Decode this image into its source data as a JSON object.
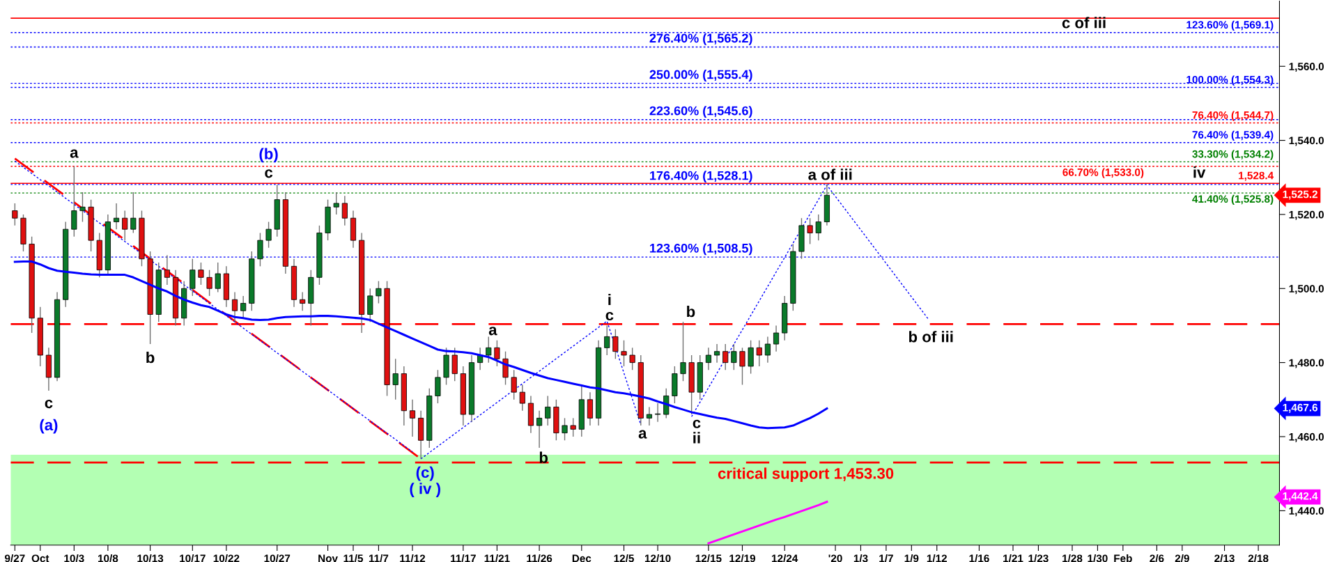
{
  "chart_data": {
    "type": "candlestick",
    "categories": [
      "9/27",
      null,
      null,
      "Oct",
      null,
      null,
      null,
      "10/3",
      null,
      null,
      null,
      "10/8",
      null,
      null,
      null,
      null,
      "10/13",
      null,
      null,
      null,
      null,
      "10/17",
      null,
      null,
      null,
      "10/22",
      null,
      null,
      null,
      null,
      null,
      "10/27",
      null,
      null,
      null,
      null,
      null,
      "Nov",
      null,
      null,
      "11/5",
      null,
      null,
      "11/7",
      null,
      null,
      null,
      "11/12",
      null,
      null,
      null,
      null,
      null,
      "11/17",
      null,
      null,
      null,
      "11/21",
      null,
      null,
      null,
      null,
      "11/26",
      null,
      null,
      null,
      null,
      "Dec",
      null,
      null,
      null,
      null,
      "12/5",
      null,
      null,
      null,
      "12/10",
      null,
      null,
      null,
      null,
      null,
      "12/15",
      null,
      null,
      null,
      "12/19",
      null,
      null,
      null,
      null,
      "12/24",
      null,
      null,
      null,
      null,
      null,
      "'20",
      null,
      null,
      "1/3",
      null,
      null,
      "1/7",
      null,
      null,
      "1/9",
      null,
      null,
      "1/12",
      null,
      null,
      null,
      null,
      "1/16",
      null,
      null,
      null,
      "1/21",
      null,
      null,
      "1/23",
      null,
      null,
      null,
      "1/28",
      null,
      null,
      "1/30",
      null,
      null,
      "Feb",
      null,
      null,
      null,
      "2/6",
      null,
      null,
      "2/9",
      null,
      null,
      null,
      null,
      "2/13",
      null,
      null,
      null,
      "2/18",
      null,
      null
    ],
    "ohlc": [
      [
        1521,
        1523,
        1517,
        1519
      ],
      [
        1519,
        1520,
        1510,
        1512
      ],
      [
        1512,
        1514,
        1488,
        1492
      ],
      [
        1492,
        1495,
        1479,
        1482
      ],
      [
        1482,
        1484,
        1472.4,
        1476
      ],
      [
        1476,
        1499,
        1475,
        1497
      ],
      [
        1497,
        1518,
        1495,
        1516
      ],
      [
        1516,
        1533,
        1514,
        1521
      ],
      [
        1521,
        1526,
        1518,
        1522
      ],
      [
        1522,
        1524,
        1510,
        1513
      ],
      [
        1513,
        1515,
        1503,
        1505
      ],
      [
        1505,
        1520,
        1504,
        1518
      ],
      [
        1518,
        1523,
        1516,
        1519
      ],
      [
        1519,
        1521,
        1513,
        1516
      ],
      [
        1516,
        1526,
        1515,
        1519
      ],
      [
        1519,
        1521,
        1506,
        1508
      ],
      [
        1508,
        1510,
        1485,
        1493
      ],
      [
        1493,
        1507,
        1491,
        1505
      ],
      [
        1505,
        1509,
        1501,
        1503
      ],
      [
        1503,
        1505,
        1490,
        1492
      ],
      [
        1492,
        1502,
        1490,
        1500
      ],
      [
        1500,
        1508,
        1498,
        1505
      ],
      [
        1505,
        1507,
        1501,
        1503
      ],
      [
        1503,
        1505,
        1498,
        1500
      ],
      [
        1500,
        1507,
        1499,
        1504
      ],
      [
        1504,
        1506,
        1495,
        1497
      ],
      [
        1497,
        1499,
        1491,
        1494
      ],
      [
        1494,
        1498,
        1492,
        1496
      ],
      [
        1496,
        1510,
        1494,
        1508
      ],
      [
        1508,
        1515,
        1506,
        1513
      ],
      [
        1513,
        1518,
        1511,
        1516
      ],
      [
        1516,
        1528,
        1514,
        1524
      ],
      [
        1524,
        1526,
        1504,
        1506
      ],
      [
        1506,
        1508,
        1495,
        1497
      ],
      [
        1497,
        1499,
        1494,
        1496
      ],
      [
        1496,
        1505,
        1490,
        1503
      ],
      [
        1503,
        1517,
        1501,
        1515
      ],
      [
        1515,
        1524,
        1513,
        1522
      ],
      [
        1522,
        1526,
        1520,
        1523
      ],
      [
        1523,
        1525,
        1517,
        1519
      ],
      [
        1519,
        1521,
        1511,
        1513
      ],
      [
        1513,
        1515,
        1488,
        1493
      ],
      [
        1493,
        1500,
        1491,
        1498
      ],
      [
        1498,
        1502,
        1496,
        1500
      ],
      [
        1500,
        1502,
        1471,
        1474
      ],
      [
        1474,
        1481,
        1470,
        1477
      ],
      [
        1477,
        1479,
        1463,
        1467
      ],
      [
        1467,
        1470,
        1460,
        1465
      ],
      [
        1465,
        1467,
        1454,
        1459
      ],
      [
        1459,
        1473,
        1457,
        1471
      ],
      [
        1471,
        1478,
        1469,
        1476
      ],
      [
        1476,
        1484,
        1474,
        1482
      ],
      [
        1482,
        1484,
        1475,
        1477
      ],
      [
        1477,
        1479,
        1463,
        1466
      ],
      [
        1466,
        1482,
        1464,
        1480
      ],
      [
        1480,
        1484,
        1478,
        1482
      ],
      [
        1482,
        1487,
        1480,
        1484
      ],
      [
        1484,
        1486,
        1479,
        1481
      ],
      [
        1481,
        1483,
        1474,
        1476
      ],
      [
        1476,
        1478,
        1470,
        1472
      ],
      [
        1472,
        1474,
        1467,
        1469
      ],
      [
        1469,
        1471,
        1461,
        1463
      ],
      [
        1463,
        1467,
        1457,
        1465
      ],
      [
        1465,
        1471,
        1463,
        1468
      ],
      [
        1468,
        1470,
        1459,
        1461
      ],
      [
        1461,
        1465,
        1459,
        1463
      ],
      [
        1463,
        1465,
        1460,
        1462
      ],
      [
        1462,
        1474,
        1460,
        1470
      ],
      [
        1470,
        1472,
        1463,
        1465
      ],
      [
        1465,
        1486,
        1463,
        1484
      ],
      [
        1484,
        1490,
        1482,
        1487
      ],
      [
        1487,
        1489,
        1481,
        1483
      ],
      [
        1483,
        1486,
        1479,
        1482
      ],
      [
        1482,
        1484,
        1478,
        1480
      ],
      [
        1480,
        1482,
        1463,
        1465
      ],
      [
        1465,
        1468,
        1463,
        1466
      ],
      [
        1466,
        1469,
        1464,
        1466
      ],
      [
        1466,
        1473,
        1465,
        1471
      ],
      [
        1471,
        1479,
        1469,
        1477
      ],
      [
        1477,
        1491,
        1475,
        1480
      ],
      [
        1480,
        1482,
        1466,
        1472
      ],
      [
        1472,
        1482,
        1470,
        1480
      ],
      [
        1480,
        1484,
        1478,
        1482
      ],
      [
        1482,
        1485,
        1480,
        1483
      ],
      [
        1483,
        1485,
        1478,
        1480
      ],
      [
        1480,
        1485,
        1478,
        1483
      ],
      [
        1483,
        1484,
        1474,
        1479
      ],
      [
        1479,
        1486,
        1477,
        1484
      ],
      [
        1484,
        1486,
        1479,
        1482
      ],
      [
        1482,
        1487,
        1480,
        1485
      ],
      [
        1485,
        1490,
        1483,
        1488
      ],
      [
        1488,
        1498,
        1486,
        1496
      ],
      [
        1496,
        1512,
        1494,
        1510
      ],
      [
        1510,
        1519,
        1508,
        1517
      ],
      [
        1517,
        1519,
        1512,
        1515
      ],
      [
        1515,
        1520,
        1513,
        1518
      ],
      [
        1518,
        1528.2,
        1517,
        1525.2
      ],
      null,
      null,
      null,
      null,
      null,
      null,
      null,
      null,
      null,
      null,
      null,
      null,
      null,
      null,
      null,
      null,
      null,
      null,
      null,
      null,
      null,
      null,
      null,
      null,
      null,
      null,
      null,
      null,
      null,
      null,
      null,
      null,
      null,
      null,
      null,
      null,
      null,
      null,
      null,
      null,
      null,
      null,
      null,
      null,
      null,
      null,
      null,
      null,
      null,
      null,
      null,
      null,
      null
    ],
    "ylim": [
      1430.7,
      1577.6
    ],
    "yticks": [
      {
        "value": 1440,
        "label": "1,440.0"
      },
      {
        "value": 1460,
        "label": "1,460.0"
      },
      {
        "value": 1480,
        "label": "1,480.0"
      },
      {
        "value": 1500,
        "label": "1,500.0"
      },
      {
        "value": 1520,
        "label": "1,520.0"
      },
      {
        "value": 1540,
        "label": "1,540.0"
      },
      {
        "value": 1560,
        "label": "1,560.0"
      }
    ],
    "series": [
      {
        "type": "line",
        "color": "#0000ff",
        "values": [
          1507.2,
          1507.3,
          1507.3,
          1506.5,
          1505.5,
          1504.8,
          1504.5,
          1504.3,
          1504,
          1503.8,
          1503.7,
          1503.7,
          1503.7,
          1503.7,
          1503,
          1502,
          1501,
          1500,
          1499.2,
          1498,
          1497,
          1496.2,
          1495.5,
          1495,
          1494,
          1493,
          1492.3,
          1492,
          1491.6,
          1491.5,
          1491.6,
          1492,
          1492.3,
          1492.4,
          1492.5,
          1492.5,
          1492.6,
          1492.6,
          1492.5,
          1492.3,
          1492.1,
          1491.9,
          1491.5,
          1490.5,
          1489.5,
          1488.5,
          1487.5,
          1486.5,
          1485.5,
          1484.5,
          1483.5,
          1483.1,
          1483,
          1482.8,
          1482.5,
          1482,
          1481.5,
          1480.5,
          1479.5,
          1478.8,
          1478,
          1477.2,
          1476.5,
          1475.8,
          1475.3,
          1474.8,
          1474.3,
          1473.8,
          1473.3,
          1473,
          1472.5,
          1472,
          1471.7,
          1471.3,
          1470.8,
          1470.3,
          1469.5,
          1468.8,
          1468,
          1467.3,
          1466.6,
          1466.1,
          1465.6,
          1465.1,
          1464.8,
          1464.2,
          1463.6,
          1463,
          1462.5,
          1462.3,
          1462.4,
          1462.5,
          1463,
          1464,
          1465,
          1466.2,
          1467.6,
          null,
          null,
          null,
          null,
          null,
          null,
          null,
          null,
          null,
          null,
          null,
          null,
          null,
          null,
          null,
          null,
          null,
          null,
          null,
          null,
          null,
          null,
          null,
          null,
          null,
          null,
          null,
          null,
          null,
          null,
          null,
          null,
          null,
          null,
          null,
          null,
          null,
          null,
          null,
          null,
          null,
          null,
          null,
          null,
          null,
          null,
          null,
          null,
          null,
          null,
          null,
          null,
          null
        ]
      },
      {
        "type": "line",
        "color": "#ff00ff",
        "values": [
          null,
          null,
          null,
          null,
          null,
          null,
          null,
          null,
          null,
          null,
          null,
          null,
          null,
          null,
          null,
          null,
          null,
          null,
          null,
          null,
          null,
          null,
          null,
          null,
          null,
          null,
          null,
          null,
          null,
          null,
          null,
          null,
          null,
          null,
          null,
          null,
          null,
          null,
          null,
          null,
          null,
          null,
          null,
          null,
          null,
          null,
          null,
          null,
          null,
          null,
          null,
          null,
          null,
          null,
          null,
          null,
          null,
          null,
          null,
          null,
          null,
          null,
          null,
          null,
          null,
          null,
          null,
          null,
          null,
          null,
          null,
          null,
          null,
          null,
          null,
          null,
          null,
          null,
          null,
          null,
          null,
          null,
          1431.2,
          1432,
          1432.8,
          1433.6,
          1434.4,
          1435.2,
          1436,
          1436.8,
          1437.6,
          1438.3,
          1439.1,
          1439.9,
          1440.7,
          1441.5,
          1442.4,
          null,
          null,
          null,
          null,
          null,
          null,
          null,
          null,
          null,
          null,
          null,
          null,
          null,
          null,
          null,
          null,
          null,
          null,
          null,
          null,
          null,
          null,
          null,
          null,
          null,
          null,
          null,
          null,
          null,
          null,
          null,
          null,
          null,
          null,
          null,
          null,
          null,
          null,
          null,
          null,
          null,
          null,
          null,
          null,
          null,
          null,
          null,
          null,
          null,
          null,
          null,
          null,
          null
        ]
      },
      {
        "type": "line",
        "color": "#ff0000",
        "line_style": "dashed",
        "values": [
          1535.1,
          null,
          null,
          null,
          null,
          null,
          null,
          null,
          null,
          null,
          null,
          null,
          null,
          null,
          null,
          null,
          null,
          null,
          null,
          null,
          null,
          null,
          null,
          null,
          null,
          null,
          null,
          null,
          null,
          null,
          null,
          null,
          null,
          null,
          null,
          null,
          null,
          null,
          null,
          null,
          null,
          null,
          null,
          null,
          null,
          null,
          null,
          null,
          1454,
          null,
          null,
          null,
          null,
          null,
          null,
          null,
          null,
          null,
          null,
          null,
          null,
          null,
          null,
          null,
          null,
          null,
          null,
          null,
          null,
          null,
          null,
          null,
          null,
          null,
          null,
          null,
          null,
          null,
          null,
          null,
          null,
          null,
          null,
          null,
          null,
          null,
          null,
          null,
          null,
          null,
          null,
          null,
          null,
          null,
          null,
          null,
          null,
          null,
          null,
          null,
          null,
          null,
          null,
          null,
          null,
          null,
          null,
          null,
          null,
          null,
          null,
          null,
          null,
          null,
          null,
          null,
          null,
          null,
          null,
          null,
          null,
          null,
          null,
          null,
          null,
          null,
          null,
          null,
          null,
          null,
          null,
          null,
          null,
          null,
          null,
          null,
          null,
          null,
          null,
          null,
          null,
          null,
          null,
          null,
          null,
          null,
          null,
          null,
          null,
          null
        ]
      },
      {
        "type": "line",
        "color": "#0000ff",
        "line_style": "dotted",
        "values": [
          1534.4,
          null,
          null,
          null,
          null,
          null,
          null,
          null,
          null,
          null,
          null,
          null,
          null,
          null,
          null,
          null,
          null,
          null,
          null,
          null,
          null,
          null,
          null,
          null,
          null,
          null,
          null,
          null,
          null,
          null,
          null,
          null,
          null,
          null,
          null,
          null,
          null,
          null,
          null,
          null,
          null,
          null,
          null,
          null,
          null,
          null,
          null,
          1455.9,
          null,
          null,
          null,
          null,
          null,
          null,
          null,
          null,
          null,
          null,
          null,
          null,
          null,
          null,
          null,
          null,
          null,
          null,
          null,
          null,
          null,
          null,
          null,
          null,
          null,
          null,
          null,
          null,
          null,
          null,
          null,
          null,
          null,
          null,
          null,
          null,
          null,
          null,
          null,
          null,
          null,
          null,
          null,
          null,
          null,
          null,
          null,
          null,
          null,
          null,
          null,
          null,
          null,
          null,
          null,
          null,
          null,
          null,
          null,
          null,
          null,
          null,
          null,
          null,
          null,
          null,
          null,
          null,
          null,
          null,
          null,
          null,
          null,
          null,
          null,
          null,
          null,
          null,
          null,
          null,
          null,
          null,
          null,
          null,
          null,
          null,
          null,
          null,
          null,
          null,
          null,
          null,
          null,
          null,
          null,
          null,
          null,
          null,
          null,
          null,
          null,
          null
        ]
      },
      {
        "type": "line",
        "color": "#0000ff",
        "line_style": "dotted",
        "values": [
          null,
          null,
          null,
          null,
          null,
          null,
          null,
          null,
          null,
          null,
          null,
          null,
          null,
          null,
          null,
          null,
          null,
          null,
          null,
          null,
          null,
          null,
          null,
          null,
          null,
          null,
          null,
          null,
          null,
          null,
          null,
          null,
          null,
          null,
          null,
          null,
          null,
          null,
          null,
          null,
          null,
          null,
          null,
          null,
          null,
          null,
          null,
          null,
          1454,
          null,
          null,
          null,
          null,
          null,
          null,
          null,
          null,
          null,
          null,
          null,
          null,
          null,
          null,
          null,
          null,
          null,
          null,
          null,
          null,
          null,
          1491.2,
          null,
          null,
          null,
          1463.2,
          null,
          null,
          null,
          null,
          null,
          null,
          null,
          null,
          null,
          null,
          null,
          null,
          null,
          null,
          null,
          null,
          null,
          null,
          null,
          null,
          null,
          null,
          null,
          null,
          null,
          null,
          null,
          null,
          null,
          null,
          null,
          null,
          null,
          null,
          null,
          null,
          null,
          null,
          null,
          null,
          null,
          null,
          null,
          null,
          null,
          null,
          null,
          null,
          null,
          null,
          null,
          null,
          null,
          null,
          null,
          null,
          null,
          null,
          null,
          null,
          null,
          null,
          null,
          null,
          null,
          null,
          null,
          null,
          null,
          null,
          null,
          null,
          null,
          null,
          null
        ]
      },
      {
        "type": "line",
        "color": "#0000ff",
        "line_style": "dotted",
        "values": [
          null,
          null,
          null,
          null,
          null,
          null,
          null,
          null,
          null,
          null,
          null,
          null,
          null,
          null,
          null,
          null,
          null,
          null,
          null,
          null,
          null,
          null,
          null,
          null,
          null,
          null,
          null,
          null,
          null,
          null,
          null,
          null,
          null,
          null,
          null,
          null,
          null,
          null,
          null,
          null,
          null,
          null,
          null,
          null,
          null,
          null,
          null,
          null,
          null,
          null,
          null,
          null,
          null,
          null,
          null,
          null,
          null,
          null,
          null,
          null,
          null,
          null,
          null,
          null,
          null,
          null,
          null,
          null,
          null,
          null,
          null,
          null,
          null,
          null,
          null,
          null,
          null,
          null,
          null,
          null,
          1465.4,
          null,
          null,
          null,
          null,
          null,
          null,
          null,
          null,
          null,
          null,
          null,
          null,
          null,
          null,
          null,
          1527.9,
          null,
          null,
          null,
          null,
          null,
          null,
          null,
          null,
          null,
          null,
          null,
          1491.7,
          null,
          null,
          null,
          null,
          null,
          null,
          null,
          null,
          null,
          null,
          null,
          null,
          null,
          null,
          null,
          null,
          null,
          null,
          null,
          null,
          null,
          null,
          null,
          null,
          null,
          null,
          null,
          null,
          null,
          null,
          null,
          null,
          null,
          null,
          null,
          null,
          null,
          null,
          null,
          null,
          null
        ]
      }
    ],
    "bands": [
      {
        "axis": "y",
        "from": 1430.7,
        "to": 1455.1,
        "color": "#b3ffb3"
      }
    ],
    "ref_lines": [
      {
        "axis": "y",
        "value": 1573,
        "color": "#ff0000",
        "line_style": "solid"
      },
      {
        "axis": "y",
        "value": 1528.4,
        "color": "#ff0000",
        "line_style": "solid",
        "label": "1,528.4"
      },
      {
        "axis": "y",
        "value": 1544.7,
        "color": "#ff0000",
        "line_style": "dotted",
        "label": "76.40% (1,544.7)"
      },
      {
        "axis": "y",
        "value": 1533,
        "color": "#ff0000",
        "line_style": "dotted",
        "label": "66.70% (1,533.0)"
      },
      {
        "axis": "y",
        "value": 1569.1,
        "color": "#0000ff",
        "line_style": "dotted",
        "label": "123.60% (1,569.1)"
      },
      {
        "axis": "y",
        "value": 1565.2,
        "color": "#0000ff",
        "line_style": "dotted",
        "label": "276.40% (1,565.2)"
      },
      {
        "axis": "y",
        "value": 1555.4,
        "color": "#0000ff",
        "line_style": "dotted",
        "label": "250.00% (1,555.4)"
      },
      {
        "axis": "y",
        "value": 1554.3,
        "color": "#0000ff",
        "line_style": "dotted",
        "label": "100.00% (1,554.3)"
      },
      {
        "axis": "y",
        "value": 1545.6,
        "color": "#0000ff",
        "line_style": "dotted",
        "label": "223.60% (1,545.6)"
      },
      {
        "axis": "y",
        "value": 1539.4,
        "color": "#0000ff",
        "line_style": "dotted",
        "label": "76.40% (1,539.4)"
      },
      {
        "axis": "y",
        "value": 1528.1,
        "color": "#0000ff",
        "line_style": "dotted",
        "label": "176.40% (1,528.1)"
      },
      {
        "axis": "y",
        "value": 1508.5,
        "color": "#0000ff",
        "line_style": "dotted",
        "label": "123.60% (1,508.5)"
      },
      {
        "axis": "y",
        "value": 1534.2,
        "color": "#008000",
        "line_style": "dotted",
        "label": "33.30% (1,534.2)"
      },
      {
        "axis": "y",
        "value": 1525.8,
        "color": "#008000",
        "line_style": "dotted",
        "label": "41.40% (1,525.8)"
      },
      {
        "axis": "y",
        "value": 1490.4,
        "color": "#ff0000",
        "line_style": "dashed"
      },
      {
        "axis": "y",
        "value": 1453,
        "color": "#ff0000",
        "line_style": "dashed"
      }
    ],
    "annotations": [
      "a",
      "c",
      "(a)",
      "b",
      "(b)",
      "c",
      "(c)",
      "( iv )",
      "a",
      "b",
      "i",
      "c",
      "a",
      "b",
      "c",
      "ii",
      "a of iii",
      "b of iii",
      "c of iii",
      "iv",
      "critical support 1,453.30",
      "1,525.2",
      "1,467.6",
      "1,442.4"
    ]
  }
}
